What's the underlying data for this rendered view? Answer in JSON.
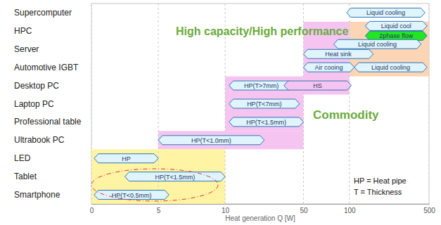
{
  "chart_data": {
    "type": "bar",
    "orientation": "horizontal",
    "grid": true,
    "x_label": "Heat generation Q [W]",
    "xlim": [
      0,
      500
    ],
    "xticks": [
      0,
      5,
      10,
      50,
      100,
      500
    ],
    "categories": [
      "Supercomputer",
      "HPC",
      "Server",
      "Automotive IGBT",
      "Desktop PC",
      "Laptop PC",
      "Professional table",
      "Ultrabook PC",
      "LED",
      "Tablet",
      "Smartphone"
    ],
    "regions": [
      {
        "from": "HPC",
        "to": "Automotive IGBT",
        "start": 100,
        "end": 500,
        "color": "#fbd5b5"
      },
      {
        "from": "HPC",
        "to": "Desktop PC",
        "start": 50,
        "end": 100,
        "color": "#f6c4f0"
      },
      {
        "from": "Desktop PC",
        "to": "Professional table",
        "start": 10,
        "end": 50,
        "color": "#f6c4f0"
      },
      {
        "from": "Ultrabook PC",
        "to": "Ultrabook PC",
        "start": 5,
        "end": 50,
        "color": "#f6c4f0"
      },
      {
        "from": "LED",
        "to": "Smartphone",
        "start": 0,
        "end": 10,
        "color": "#fff4a3"
      }
    ],
    "bars": [
      {
        "category": "Supercomputer",
        "label": "Liquid cooling",
        "start": 97,
        "end": 480,
        "color": "#dff4fc"
      },
      {
        "category": "HPC",
        "label": "Liquid cool",
        "start": 180,
        "end": 490,
        "color": "#dff4fc"
      },
      {
        "category": "HPC",
        "label": "2phase flow",
        "start": 180,
        "end": 490,
        "color": "#22e622"
      },
      {
        "category": "Server",
        "label": "Liquid cooling",
        "start": 83,
        "end": 460,
        "color": "#dff4fc"
      },
      {
        "category": "Server",
        "label": "Heat sink",
        "start": 50,
        "end": 220,
        "color": "#dff4fc"
      },
      {
        "category": "Automotive IGBT",
        "label": "Air cooing",
        "start": 50,
        "end": 125,
        "color": "#dff4fc"
      },
      {
        "category": "Automotive IGBT",
        "label": "Liquid cooling",
        "start": 125,
        "end": 490,
        "color": "#dff4fc"
      },
      {
        "category": "Desktop PC",
        "label": "HP(T>7mm)",
        "start": 12,
        "end": 45,
        "color": "#dff4fc"
      },
      {
        "category": "Desktop PC",
        "label": "HS",
        "start": 40,
        "end": 110,
        "color": "#f6c4f0"
      },
      {
        "category": "Laptop PC",
        "label": "HP(T<7mm)",
        "start": 12,
        "end": 48,
        "color": "#dff4fc"
      },
      {
        "category": "Professional table",
        "label": "HP(T<1.5mm)",
        "start": 12,
        "end": 50,
        "color": "#dff4fc"
      },
      {
        "category": "Ultrabook PC",
        "label": "HP(T<1.0mm)",
        "start": 5,
        "end": 30,
        "color": "#dff4fc"
      },
      {
        "category": "LED",
        "label": "HP",
        "start": 0.2,
        "end": 5,
        "color": "#dff4fc"
      },
      {
        "category": "Tablet",
        "label": "HP(T<1.5mm)",
        "start": 2.5,
        "end": 10,
        "color": "#dff4fc"
      },
      {
        "category": "Smartphone",
        "label": "HP(T<0.5mm)",
        "start": 0.2,
        "end": 5.8,
        "color": "#dff4fc"
      }
    ],
    "annotations": [
      "High capacity/High performance",
      "Commodity",
      "HP = Heat pipe",
      "T = Thickness"
    ]
  }
}
